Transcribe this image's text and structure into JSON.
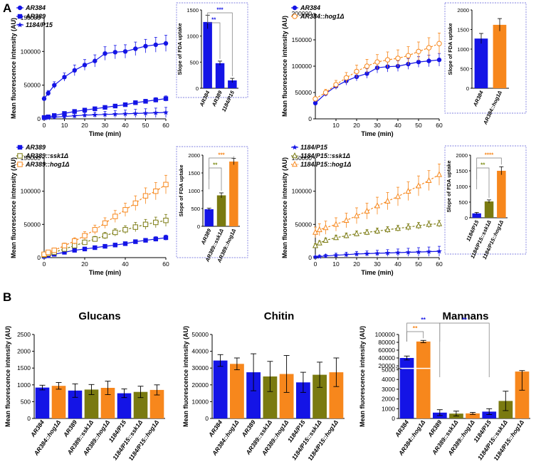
{
  "panels": {
    "A": "A",
    "B": "B"
  },
  "colors": {
    "blue": "#1414e6",
    "olive": "#7a7a10",
    "orange": "#f7871c",
    "ax": "#000000",
    "inset_border": "#8080e0",
    "star_blue": "#1414e6",
    "star_olive": "#7a8a10",
    "star_orange": "#f7871c"
  },
  "chart_data": [
    {
      "id": "A1",
      "type": "line",
      "title": "",
      "xlabel": "Time (min)",
      "ylabel": "Mean fluorescence intensity (AU)",
      "ylim": [
        0,
        150000
      ],
      "yticks": [
        0,
        50000,
        100000,
        150000
      ],
      "xlim": [
        0,
        60
      ],
      "xticks": [
        0,
        10,
        20,
        30,
        40,
        50,
        60
      ],
      "x": [
        0,
        2,
        5,
        10,
        15,
        20,
        25,
        30,
        35,
        40,
        45,
        50,
        55,
        60
      ],
      "series": [
        {
          "name": "AR384",
          "color": "blue",
          "marker": "circle",
          "dashed": false,
          "values": [
            30000,
            38000,
            50000,
            62000,
            72000,
            80000,
            86000,
            97000,
            99000,
            100000,
            104000,
            108000,
            110000,
            112000
          ],
          "err": [
            3000,
            4000,
            5000,
            6000,
            8000,
            8000,
            9000,
            10000,
            10000,
            10000,
            10000,
            10000,
            11000,
            12000
          ]
        },
        {
          "name": "AR389",
          "color": "blue",
          "marker": "square",
          "dashed": false,
          "values": [
            2000,
            3000,
            5000,
            8000,
            11000,
            13000,
            15000,
            17000,
            19000,
            21000,
            24000,
            26000,
            28000,
            30000
          ],
          "err": [
            500,
            600,
            800,
            1000,
            1200,
            1500,
            1800,
            2000,
            2200,
            2400,
            2800,
            3000,
            3500,
            4000
          ]
        },
        {
          "name": "1184/P15",
          "color": "blue",
          "marker": "star",
          "dashed": false,
          "values": [
            1000,
            1500,
            2500,
            3500,
            4500,
            5500,
            6000,
            6500,
            7000,
            7500,
            8000,
            8500,
            9000,
            9500
          ],
          "err": [
            1500,
            2000,
            2500,
            3000,
            3500,
            3800,
            4000,
            4500,
            5000,
            5500,
            6000,
            6500,
            7000,
            7500
          ]
        }
      ],
      "inset": {
        "ylabel": "Slope of FDA uptake",
        "ylim": [
          0,
          1500
        ],
        "yticks": [
          0,
          500,
          1000,
          1500
        ],
        "categories": [
          "AR384",
          "AR389",
          "1184/P15"
        ],
        "values": [
          1270,
          480,
          150
        ],
        "err": [
          130,
          40,
          40
        ],
        "colors": [
          "blue",
          "blue",
          "blue"
        ],
        "sig": [
          {
            "from": 0,
            "to": 1,
            "label": "**",
            "color": "star_blue"
          },
          {
            "from": 0,
            "to": 2,
            "label": "***",
            "color": "star_blue"
          }
        ]
      }
    },
    {
      "id": "A2",
      "type": "line",
      "title": "",
      "xlabel": "Time (min)",
      "ylabel": "Mean fluorescence intensity (AU)",
      "ylim": [
        0,
        200000
      ],
      "yticks": [
        0,
        50000,
        100000,
        150000,
        200000
      ],
      "xlim": [
        0,
        60
      ],
      "xticks": [
        10,
        20,
        30,
        40,
        50,
        60
      ],
      "x": [
        0,
        5,
        10,
        15,
        20,
        25,
        30,
        35,
        40,
        45,
        50,
        55,
        60
      ],
      "series": [
        {
          "name": "AR384",
          "color": "blue",
          "marker": "circle",
          "dashed": false,
          "values": [
            30000,
            48000,
            62000,
            72000,
            80000,
            86000,
            97000,
            99000,
            100000,
            104000,
            108000,
            110000,
            112000
          ],
          "err": [
            3000,
            5000,
            6000,
            8000,
            8000,
            9000,
            10000,
            10000,
            10000,
            10000,
            10000,
            11000,
            12000
          ]
        },
        {
          "name": "AR384::hog1Δ",
          "color": "orange",
          "marker": "circle-open",
          "dashed": true,
          "values": [
            38000,
            50000,
            65000,
            78000,
            90000,
            100000,
            108000,
            112000,
            115000,
            120000,
            128000,
            135000,
            143000
          ],
          "err": [
            4000,
            6000,
            8000,
            10000,
            12000,
            13000,
            14000,
            15000,
            16000,
            17000,
            18000,
            19000,
            20000
          ]
        }
      ],
      "inset": {
        "ylabel": "Slope of FDA uptake",
        "ylim": [
          0,
          2000
        ],
        "yticks": [
          0,
          500,
          1000,
          1500,
          2000
        ],
        "categories": [
          "AR384",
          "AR384::hog1Δ"
        ],
        "values": [
          1270,
          1620
        ],
        "err": [
          130,
          160
        ],
        "colors": [
          "blue",
          "orange"
        ],
        "sig": []
      }
    },
    {
      "id": "A3",
      "type": "line",
      "title": "",
      "xlabel": "Time (min)",
      "ylabel": "Mean fluorescence intensity (AU)",
      "ylim": [
        0,
        150000
      ],
      "yticks": [
        0,
        50000,
        100000,
        150000
      ],
      "xlim": [
        0,
        60
      ],
      "xticks": [
        0,
        20,
        40,
        60
      ],
      "x": [
        0,
        2,
        5,
        10,
        15,
        20,
        25,
        30,
        35,
        40,
        45,
        50,
        55,
        60
      ],
      "series": [
        {
          "name": "AR389",
          "color": "blue",
          "marker": "square",
          "dashed": false,
          "values": [
            2000,
            3000,
            5000,
            8000,
            11000,
            13000,
            15000,
            17000,
            19000,
            21000,
            24000,
            26000,
            28000,
            30000
          ],
          "err": [
            500,
            600,
            800,
            1000,
            1200,
            1500,
            1800,
            2000,
            2200,
            2400,
            2800,
            3000,
            3500,
            4000
          ]
        },
        {
          "name": "AR389::ssk1Δ",
          "color": "olive",
          "marker": "square-open",
          "dashed": true,
          "values": [
            4000,
            6000,
            8000,
            13000,
            18000,
            23000,
            28000,
            33000,
            38000,
            42000,
            46000,
            50000,
            53000,
            56000
          ],
          "err": [
            1000,
            1500,
            2000,
            2500,
            3000,
            3500,
            4000,
            5000,
            5500,
            6000,
            7000,
            7500,
            8000,
            9000
          ]
        },
        {
          "name": "AR389::hog1Δ",
          "color": "orange",
          "marker": "square-open",
          "dashed": true,
          "values": [
            5000,
            8000,
            11000,
            18000,
            25000,
            33000,
            42000,
            52000,
            62000,
            72000,
            82000,
            93000,
            100000,
            110000
          ],
          "err": [
            1500,
            2000,
            3000,
            4000,
            5000,
            6000,
            7000,
            8000,
            9000,
            10000,
            11000,
            12000,
            13000,
            14000
          ]
        }
      ],
      "inset": {
        "ylabel": "Slope of FDA uptake",
        "ylim": [
          0,
          2000
        ],
        "yticks": [
          0,
          500,
          1000,
          1500,
          2000
        ],
        "categories": [
          "AR389",
          "AR389::ssk1Δ",
          "AR389::hog1Δ"
        ],
        "values": [
          480,
          870,
          1820
        ],
        "err": [
          30,
          70,
          90
        ],
        "colors": [
          "blue",
          "olive",
          "orange"
        ],
        "sig": [
          {
            "from": 0,
            "to": 1,
            "label": "**",
            "color": "star_olive"
          },
          {
            "from": 0,
            "to": 2,
            "label": "***",
            "color": "star_orange"
          }
        ]
      }
    },
    {
      "id": "A4",
      "type": "line",
      "title": "",
      "xlabel": "Time (min)",
      "ylabel": "Mean fluorescence intensity (AU)",
      "ylim": [
        0,
        150000
      ],
      "yticks": [
        0,
        50000,
        100000,
        150000
      ],
      "xlim": [
        0,
        60
      ],
      "xticks": [
        0,
        10,
        20,
        30,
        40,
        50,
        60
      ],
      "x": [
        0,
        2,
        5,
        10,
        15,
        20,
        25,
        30,
        35,
        40,
        45,
        50,
        55,
        60
      ],
      "series": [
        {
          "name": "1184/P15",
          "color": "blue",
          "marker": "star",
          "dashed": false,
          "values": [
            1000,
            1500,
            2500,
            3500,
            4500,
            5500,
            6000,
            6500,
            7000,
            7500,
            8000,
            8500,
            9000,
            9500
          ],
          "err": [
            1500,
            2000,
            2500,
            3000,
            3500,
            3800,
            4000,
            4500,
            5000,
            5500,
            6000,
            6500,
            7000,
            7500
          ]
        },
        {
          "name": "1184/P15::ssk1Δ",
          "color": "olive",
          "marker": "triangle-open",
          "dashed": true,
          "values": [
            18000,
            22000,
            26000,
            30000,
            33000,
            36000,
            38000,
            40000,
            42000,
            44000,
            46000,
            48000,
            50000,
            51000
          ],
          "err": [
            3000,
            3000,
            3500,
            3500,
            4000,
            4000,
            4000,
            4500,
            4500,
            4500,
            5000,
            5000,
            5000,
            5000
          ]
        },
        {
          "name": "1184/P15::hog1Δ",
          "color": "orange",
          "marker": "triangle-open",
          "dashed": true,
          "values": [
            38000,
            42000,
            45000,
            50000,
            56000,
            63000,
            70000,
            78000,
            85000,
            92000,
            100000,
            108000,
            116000,
            125000
          ],
          "err": [
            8000,
            9000,
            10000,
            10000,
            11000,
            12000,
            12000,
            13000,
            13000,
            14000,
            14000,
            15000,
            15000,
            16000
          ]
        }
      ],
      "inset": {
        "ylabel": "Slope of FDA uptake",
        "ylim": [
          0,
          2000
        ],
        "yticks": [
          0,
          500,
          1000,
          1500,
          2000
        ],
        "categories": [
          "1184/P15",
          "1184/P15::ssk1Δ",
          "1184/P15::hog1Δ"
        ],
        "values": [
          140,
          520,
          1500
        ],
        "err": [
          30,
          50,
          130
        ],
        "colors": [
          "blue",
          "olive",
          "orange"
        ],
        "sig": [
          {
            "from": 0,
            "to": 1,
            "label": "**",
            "color": "star_olive"
          },
          {
            "from": 0,
            "to": 2,
            "label": "****",
            "color": "star_orange"
          }
        ]
      }
    },
    {
      "id": "B1",
      "type": "bar",
      "title": "Glucans",
      "xlabel": "",
      "ylabel": "Mean fluorescence intensity (AU)",
      "ylim": [
        0,
        2500
      ],
      "yticks": [
        0,
        500,
        1000,
        1500,
        2000,
        2500
      ],
      "categories": [
        "AR384",
        "AR384::hog1Δ",
        "AR389",
        "AR389::ssk1Δ",
        "AR389::hog1Δ",
        "1184/P15",
        "1184/P15::ssk1Δ",
        "1184/P15::hog1Δ"
      ],
      "values": [
        920,
        970,
        830,
        860,
        910,
        750,
        790,
        850
      ],
      "err": [
        70,
        100,
        200,
        150,
        200,
        130,
        170,
        150
      ],
      "colors": [
        "blue",
        "orange",
        "blue",
        "olive",
        "orange",
        "blue",
        "olive",
        "orange"
      ],
      "sig": []
    },
    {
      "id": "B2",
      "type": "bar",
      "title": "Chitin",
      "xlabel": "",
      "ylabel": "Mean fluorescence intensity (AU)",
      "ylim": [
        0,
        50000
      ],
      "yticks": [
        0,
        10000,
        20000,
        30000,
        40000,
        50000
      ],
      "categories": [
        "AR384",
        "AR384::hog1Δ",
        "AR389",
        "AR389::ssk1Δ",
        "AR389::hog1Δ",
        "1184/P15",
        "1184/P15::ssk1Δ",
        "1184/P15::hog1Δ"
      ],
      "values": [
        34500,
        32500,
        27500,
        25000,
        26500,
        21500,
        26000,
        27500
      ],
      "err": [
        3500,
        3500,
        11000,
        9000,
        11000,
        6000,
        7500,
        8500
      ],
      "colors": [
        "blue",
        "orange",
        "blue",
        "olive",
        "orange",
        "blue",
        "olive",
        "orange"
      ],
      "sig": []
    },
    {
      "id": "B3",
      "type": "bar",
      "title": "Mannans",
      "xlabel": "",
      "ylabel": "Mean fluorescence intensity (AU)",
      "ylim": [
        0,
        100000
      ],
      "yticks": [
        0,
        1000,
        2000,
        3000,
        4000,
        5000,
        20000,
        40000,
        60000,
        80000,
        100000
      ],
      "axis_break": {
        "low_max": 5000,
        "high_min": 10000
      },
      "categories": [
        "AR384",
        "AR384::hog1Δ",
        "AR389",
        "AR389::ssk1Δ",
        "AR389::hog1Δ",
        "1184/P15",
        "1184/P15::ssk1Δ",
        "1184/P15::hog1Δ"
      ],
      "values": [
        40000,
        82000,
        600,
        500,
        520,
        700,
        1800,
        5400
      ],
      "err": [
        5000,
        3000,
        300,
        250,
        100,
        300,
        1000,
        2500
      ],
      "colors": [
        "blue",
        "orange",
        "blue",
        "olive",
        "orange",
        "blue",
        "olive",
        "orange"
      ],
      "sig": [
        {
          "from": 0,
          "to": 1,
          "label": "**",
          "color": "star_orange"
        },
        {
          "from": 0,
          "to": 2,
          "label": "**",
          "color": "star_blue"
        },
        {
          "from": 2,
          "to": 5,
          "label": "**",
          "color": "star_blue"
        }
      ]
    }
  ]
}
